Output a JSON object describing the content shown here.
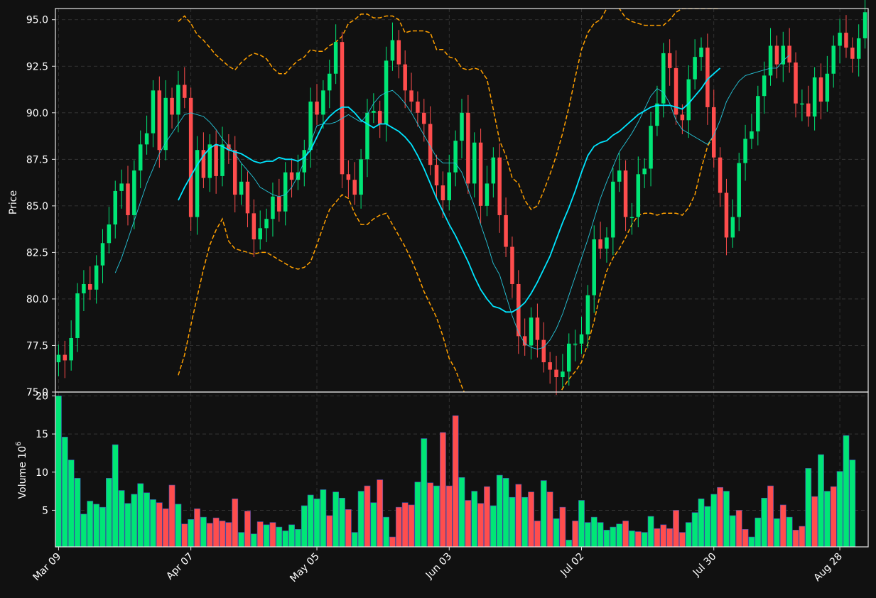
{
  "chart_data": [
    {
      "type": "candlestick",
      "ylabel": "Price",
      "ylim": [
        75.0,
        95.6
      ],
      "yticks": [
        "75.0",
        "77.5",
        "80.0",
        "82.5",
        "85.0",
        "87.5",
        "90.0",
        "92.5",
        "95.0"
      ],
      "grid": true,
      "colors": {
        "up": "#00e676",
        "down": "#ff4d4d",
        "ma_fast": "#26c6da",
        "ma_slow": "#00e5ff",
        "bands": "#ffa000"
      },
      "series": [
        {
          "label": "close",
          "values": [
            77.0,
            76.7,
            77.9,
            80.3,
            80.8,
            80.5,
            81.8,
            83.0,
            84.0,
            85.8,
            86.2,
            84.5,
            86.9,
            88.3,
            88.9,
            91.2,
            88.0,
            90.8,
            89.9,
            91.5,
            90.8,
            84.4,
            88.0,
            86.5,
            88.3,
            86.6,
            88.3,
            88.0,
            85.6,
            86.3,
            84.6,
            83.2,
            83.8,
            84.3,
            85.5,
            84.7,
            86.8,
            86.4,
            86.8,
            88.0,
            90.6,
            89.9,
            91.2,
            92.1,
            93.8,
            86.7,
            86.4,
            85.6,
            87.5,
            90.0,
            90.1,
            89.4,
            92.8,
            93.9,
            92.6,
            91.2,
            90.6,
            90.0,
            89.4,
            87.2,
            86.1,
            85.3,
            86.8,
            88.5,
            90.0,
            86.2,
            88.4,
            85.0,
            86.2,
            87.6,
            84.5,
            82.8,
            80.8,
            78.0,
            77.5,
            79.0,
            77.8,
            76.6,
            76.2,
            75.8,
            76.1,
            77.6,
            77.6,
            78.1,
            80.2,
            83.2,
            82.7,
            83.3,
            86.3,
            86.9,
            84.4,
            84.4,
            86.7,
            87.0,
            89.3,
            90.5,
            93.2,
            92.4,
            89.9,
            89.6,
            91.8,
            93.0,
            93.5,
            90.3,
            87.6,
            85.7,
            83.3,
            84.4,
            87.3,
            88.6,
            89.0,
            90.9,
            92.0,
            93.6,
            92.6,
            93.6,
            92.7,
            90.5,
            90.5,
            89.8,
            91.9,
            90.6,
            92.1,
            93.6,
            94.3,
            93.5,
            92.9,
            94.0,
            95.4
          ]
        }
      ],
      "ma_fast": [
        81.4,
        82.2,
        83.2,
        84.2,
        85.2,
        86.2,
        87.0,
        87.8,
        88.4,
        88.9,
        89.4,
        89.9,
        90.0,
        89.9,
        89.8,
        89.5,
        89.1,
        88.6,
        88.2,
        87.8,
        87.3,
        86.9,
        86.5,
        86.0,
        85.8,
        85.6,
        85.5,
        85.6,
        86.0,
        86.6,
        87.4,
        88.4,
        89.3,
        89.4,
        89.4,
        89.5,
        89.7,
        89.9,
        89.7,
        89.5,
        89.9,
        90.5,
        90.9,
        91.1,
        91.2,
        90.9,
        90.5,
        90.0,
        89.4,
        88.8,
        88.2,
        87.6,
        87.3,
        87.3,
        87.3,
        86.8,
        85.9,
        85.0,
        84.0,
        83.0,
        81.9,
        81.3,
        80.2,
        79.1,
        78.2,
        77.6,
        77.4,
        77.3,
        77.4,
        77.8,
        78.4,
        79.2,
        80.2,
        81.2,
        82.2,
        83.2,
        84.3,
        85.4,
        86.3,
        87.1,
        87.9,
        88.4,
        88.9,
        89.5,
        90.2,
        90.9,
        91.3,
        91.1,
        90.5,
        89.6,
        89.1,
        88.9,
        88.7,
        88.5,
        88.3,
        88.8,
        89.6,
        90.6,
        91.2,
        91.7,
        92.0,
        92.1,
        92.2,
        92.3,
        92.4,
        92.4,
        92.8,
        93.1
      ],
      "ma_slow": [
        85.3,
        86.0,
        86.6,
        87.2,
        87.7,
        88.1,
        88.3,
        88.2,
        88.0,
        87.9,
        87.8,
        87.6,
        87.4,
        87.3,
        87.4,
        87.4,
        87.6,
        87.5,
        87.5,
        87.4,
        87.6,
        88.0,
        88.7,
        89.4,
        89.8,
        90.1,
        90.3,
        90.3,
        90.0,
        89.6,
        89.4,
        89.2,
        89.4,
        89.4,
        89.2,
        89.0,
        88.7,
        88.3,
        87.7,
        87.0,
        86.2,
        85.4,
        84.7,
        84.0,
        83.4,
        82.7,
        82.0,
        81.2,
        80.5,
        80.0,
        79.6,
        79.5,
        79.3,
        79.3,
        79.5,
        79.8,
        80.3,
        80.9,
        81.6,
        82.3,
        83.2,
        84.1,
        84.9,
        85.8,
        86.8,
        87.7,
        88.2,
        88.4,
        88.5,
        88.8,
        89.0,
        89.3,
        89.6,
        89.9,
        90.1,
        90.3,
        90.4,
        90.4,
        90.4,
        90.3,
        90.2,
        90.5,
        90.9,
        91.3,
        91.8,
        92.1,
        92.4
      ],
      "band_upper": [
        94.9,
        95.2,
        94.8,
        94.2,
        93.9,
        93.5,
        93.1,
        92.8,
        92.5,
        92.3,
        92.7,
        93.0,
        93.2,
        93.1,
        92.9,
        92.4,
        92.1,
        92.1,
        92.5,
        92.8,
        93.0,
        93.4,
        93.3,
        93.3,
        93.6,
        93.8,
        94.1,
        94.8,
        95.0,
        95.3,
        95.3,
        95.1,
        95.1,
        95.2,
        95.2,
        95.0,
        94.3,
        94.4,
        94.4,
        94.4,
        94.3,
        93.4,
        93.4,
        93.0,
        92.9,
        92.4,
        92.3,
        92.4,
        92.3,
        91.8,
        90.2,
        88.5,
        87.7,
        86.5,
        86.2,
        85.3,
        84.8,
        85.0,
        85.8,
        86.7,
        87.7,
        88.9,
        90.3,
        91.9,
        93.4,
        94.3,
        94.8,
        95.0,
        95.6,
        95.8,
        95.6,
        95.1,
        94.9,
        94.8,
        94.7,
        94.7,
        94.7,
        94.7,
        95.0,
        95.4,
        95.6,
        95.6,
        95.6,
        95.6,
        95.6,
        95.6,
        95.6
      ],
      "band_lower": [
        75.9,
        77.0,
        78.6,
        80.1,
        81.6,
        82.9,
        83.7,
        84.3,
        83.1,
        82.7,
        82.6,
        82.5,
        82.4,
        82.5,
        82.5,
        82.3,
        82.1,
        81.9,
        81.7,
        81.6,
        81.7,
        82.0,
        82.9,
        83.9,
        84.8,
        85.2,
        85.6,
        85.4,
        84.6,
        84.0,
        84.0,
        84.3,
        84.5,
        84.6,
        84.0,
        83.4,
        82.8,
        82.1,
        81.3,
        80.4,
        79.7,
        79.0,
        78.0,
        76.8,
        76.2,
        75.3,
        74.5,
        73.5,
        72.5,
        71.8,
        71.0,
        70.5,
        70.0,
        69.8,
        70.0,
        70.4,
        71.0,
        71.8,
        72.7,
        73.6,
        74.5,
        75.2,
        75.7,
        76.1,
        76.6,
        77.6,
        78.8,
        80.3,
        81.5,
        82.2,
        82.7,
        83.3,
        84.0,
        84.5,
        84.6,
        84.6,
        84.5,
        84.6,
        84.6,
        84.6,
        84.5,
        84.9,
        85.6,
        87.0,
        88.2,
        88.8
      ]
    },
    {
      "type": "bar",
      "ylabel": "Volume  10",
      "ylabel_exp": "6",
      "ylim": [
        0.2,
        20.5
      ],
      "yticks": [
        "5",
        "10",
        "15",
        "20"
      ],
      "x_tick_labels": [
        "Mar 09",
        "Apr 07",
        "May 05",
        "Jun 03",
        "Jul 02",
        "Jul 30",
        "Aug 28"
      ],
      "values": [
        20.0,
        14.6,
        11.6,
        9.2,
        4.5,
        6.2,
        5.8,
        5.4,
        9.2,
        13.6,
        7.6,
        5.9,
        7.1,
        8.5,
        7.3,
        6.4,
        6.0,
        5.2,
        8.3,
        5.8,
        3.2,
        3.8,
        5.2,
        4.1,
        3.3,
        4.0,
        3.6,
        3.4,
        6.5,
        2.1,
        4.9,
        1.9,
        3.5,
        3.1,
        3.4,
        2.8,
        2.3,
        3.1,
        2.5,
        5.6,
        7.0,
        6.5,
        7.7,
        4.3,
        7.4,
        6.6,
        5.1,
        2.1,
        7.5,
        8.2,
        6.0,
        9.0,
        4.1,
        1.5,
        5.4,
        6.0,
        5.7,
        8.7,
        14.4,
        8.6,
        8.2,
        15.2,
        8.2,
        17.4,
        9.3,
        6.3,
        7.5,
        5.9,
        8.1,
        5.6,
        9.6,
        9.2,
        6.7,
        8.4,
        6.7,
        7.4,
        3.6,
        8.9,
        7.4,
        3.9,
        5.4,
        1.1,
        3.6,
        6.3,
        3.4,
        4.1,
        3.4,
        2.4,
        2.8,
        3.2,
        3.6,
        2.3,
        2.2,
        2.1,
        4.2,
        2.6,
        3.1,
        2.6,
        5.0,
        2.1,
        3.4,
        4.7,
        6.5,
        5.5,
        7.1,
        8.0,
        7.5,
        4.3,
        5.0,
        2.5,
        1.5,
        4.0,
        6.6,
        8.2,
        3.9,
        5.7,
        4.1,
        2.4,
        2.9,
        10.5,
        6.8,
        12.3,
        7.5,
        8.1,
        10.1,
        14.8,
        11.6
      ],
      "directions": "UUUUUUUUUUUUUUUUDDDUDUDUDDDDDUDUDUDUUUUUUUUDUUDUUDUDUDDDDUUDUDDDUDUDDUUUUDUDDUDUDUDUUUUUUUDUDUUDDDDDUUUUUDUUDDUUUDUDUDDUDUUDUUU"
    }
  ]
}
